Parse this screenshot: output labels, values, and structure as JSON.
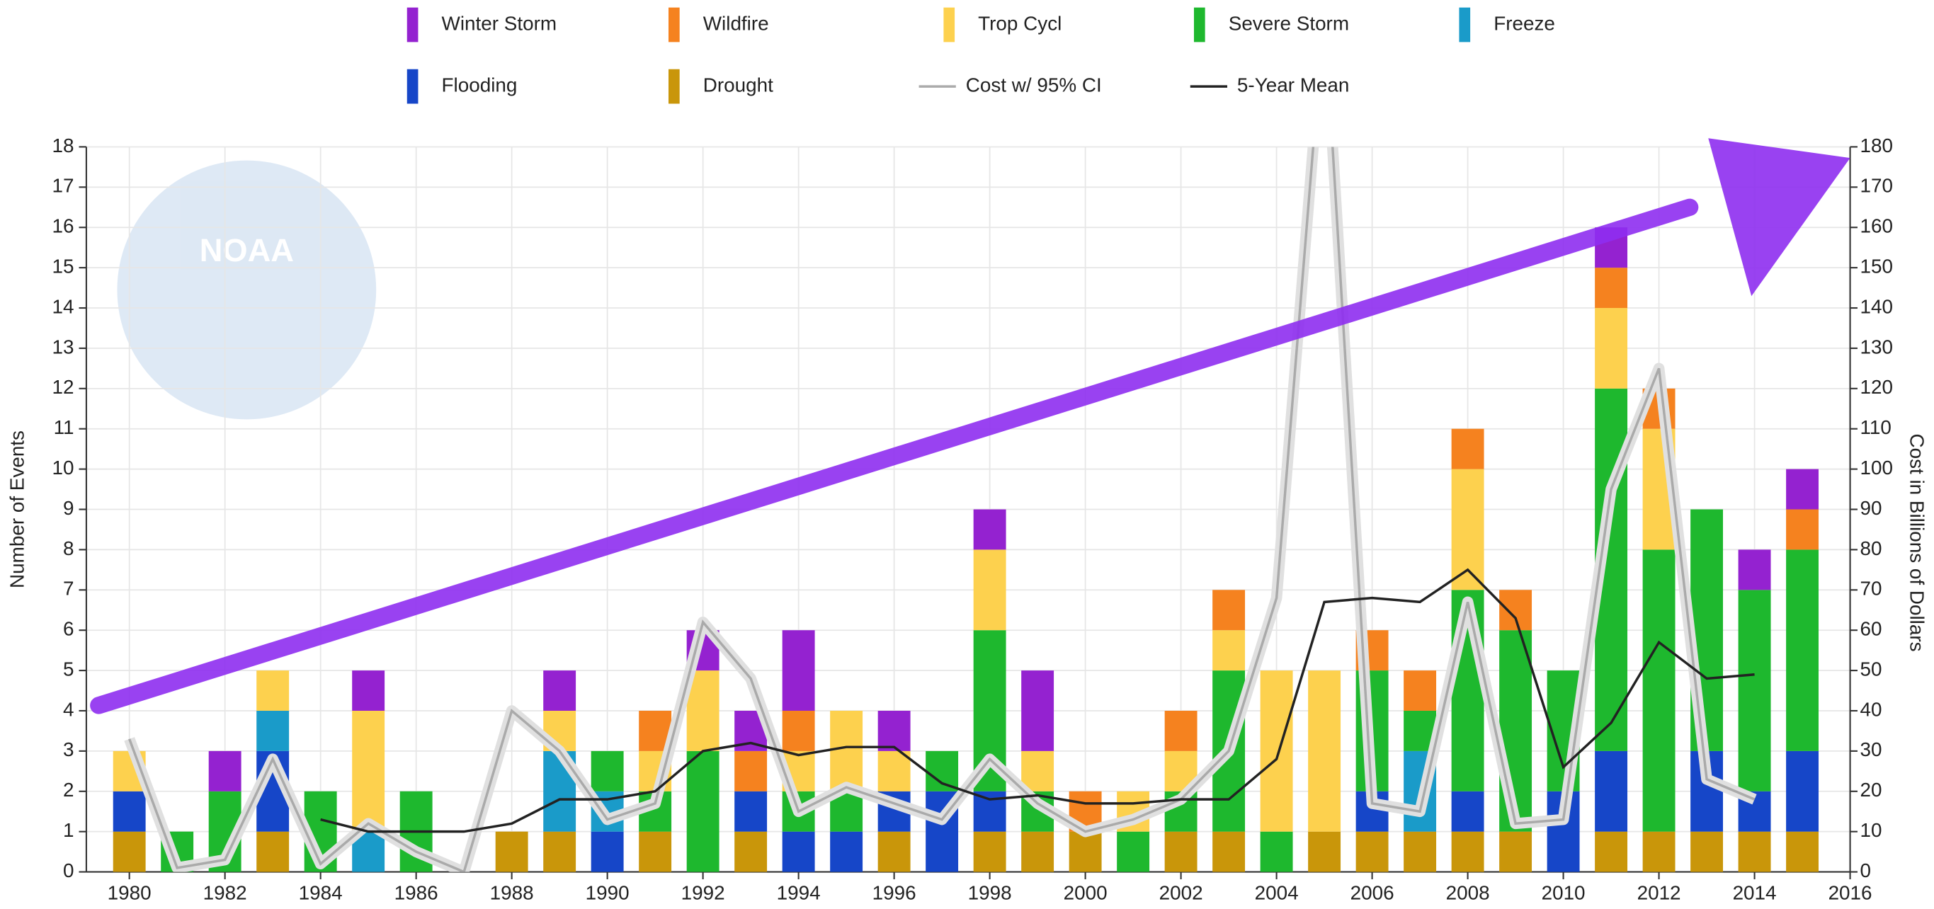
{
  "chart_data": {
    "type": "bar",
    "stacked": true,
    "watermark": "NOAA",
    "x": [
      1980,
      1981,
      1982,
      1983,
      1984,
      1985,
      1986,
      1987,
      1988,
      1989,
      1990,
      1991,
      1992,
      1993,
      1994,
      1995,
      1996,
      1997,
      1998,
      1999,
      2000,
      2001,
      2002,
      2003,
      2004,
      2005,
      2006,
      2007,
      2008,
      2009,
      2010,
      2011,
      2012,
      2013,
      2014,
      2015
    ],
    "xlim": [
      1979.1,
      2016
    ],
    "xticks": [
      1980,
      1982,
      1984,
      1986,
      1988,
      1990,
      1992,
      1994,
      1996,
      1998,
      2000,
      2002,
      2004,
      2006,
      2008,
      2010,
      2012,
      2014,
      2016
    ],
    "ylabel": "Number of Events",
    "ylim": [
      0,
      18
    ],
    "yticks": [
      0,
      1,
      2,
      3,
      4,
      5,
      6,
      7,
      8,
      9,
      10,
      11,
      12,
      13,
      14,
      15,
      16,
      17,
      18
    ],
    "y2label": "Cost in Billions of Dollars",
    "y2lim": [
      0,
      180
    ],
    "y2ticks": [
      0,
      10,
      20,
      30,
      40,
      50,
      60,
      70,
      80,
      90,
      100,
      110,
      120,
      130,
      140,
      150,
      160,
      170,
      180
    ],
    "grid": true,
    "series": [
      {
        "name": "Winter Storm",
        "color": "#9422d0",
        "values": [
          0,
          0,
          1,
          0,
          0,
          1,
          0,
          0,
          0,
          1,
          0,
          0,
          1,
          1,
          2,
          0,
          1,
          0,
          1,
          2,
          0,
          0,
          0,
          0,
          0,
          0,
          0,
          0,
          0,
          0,
          0,
          1,
          0,
          0,
          1,
          1
        ]
      },
      {
        "name": "Wildfire",
        "color": "#f5821f",
        "values": [
          0,
          0,
          0,
          0,
          0,
          0,
          0,
          0,
          0,
          0,
          0,
          1,
          0,
          1,
          1,
          0,
          0,
          0,
          0,
          0,
          1,
          0,
          1,
          1,
          0,
          0,
          1,
          1,
          1,
          1,
          0,
          1,
          1,
          0,
          0,
          1
        ]
      },
      {
        "name": "Trop Cycl",
        "color": "#fdd14e",
        "values": [
          1,
          0,
          0,
          1,
          0,
          3,
          0,
          0,
          0,
          1,
          0,
          1,
          2,
          0,
          1,
          2,
          1,
          0,
          2,
          1,
          0,
          1,
          1,
          1,
          4,
          4,
          0,
          0,
          3,
          0,
          0,
          2,
          3,
          0,
          0,
          0
        ]
      },
      {
        "name": "Severe Storm",
        "color": "#1eb82e",
        "values": [
          0,
          1,
          2,
          0,
          2,
          0,
          2,
          0,
          0,
          0,
          1,
          1,
          3,
          0,
          1,
          1,
          0,
          1,
          4,
          1,
          0,
          1,
          1,
          4,
          1,
          0,
          3,
          1,
          5,
          5,
          3,
          9,
          7,
          6,
          5,
          5
        ]
      },
      {
        "name": "Freeze",
        "color": "#1a9bc9",
        "values": [
          0,
          0,
          0,
          1,
          0,
          1,
          0,
          0,
          0,
          2,
          1,
          0,
          0,
          0,
          0,
          0,
          0,
          0,
          0,
          0,
          0,
          0,
          0,
          0,
          0,
          0,
          0,
          2,
          0,
          0,
          0,
          0,
          0,
          0,
          0,
          0
        ]
      },
      {
        "name": "Flooding",
        "color": "#1646c8",
        "values": [
          1,
          0,
          0,
          2,
          0,
          0,
          0,
          0,
          0,
          0,
          1,
          0,
          0,
          1,
          1,
          1,
          1,
          2,
          1,
          0,
          0,
          0,
          0,
          0,
          0,
          0,
          1,
          0,
          1,
          0,
          2,
          2,
          0,
          2,
          1,
          2
        ]
      },
      {
        "name": "Drought",
        "color": "#c9960a",
        "values": [
          1,
          0,
          0,
          1,
          0,
          0,
          0,
          0,
          1,
          1,
          0,
          1,
          0,
          1,
          0,
          0,
          1,
          0,
          1,
          1,
          1,
          0,
          1,
          1,
          0,
          1,
          1,
          1,
          1,
          1,
          0,
          1,
          1,
          1,
          1,
          1
        ]
      },
      {
        "name": "Cost w/ 95% CI",
        "type": "line",
        "axis": "y2",
        "color": "#aaaaaa",
        "values": [
          33,
          1,
          3,
          28,
          2,
          12,
          5,
          0,
          40,
          30,
          13,
          17,
          62,
          48,
          15,
          21,
          17,
          13,
          28,
          17,
          10,
          13,
          18,
          30,
          68,
          214,
          17,
          15,
          67,
          12,
          13,
          95,
          125,
          23,
          18,
          null
        ]
      },
      {
        "name": "5-Year Mean",
        "type": "line",
        "axis": "y2",
        "color": "#222222",
        "values": [
          null,
          null,
          null,
          null,
          13,
          10,
          10,
          10,
          12,
          18,
          18,
          20,
          30,
          32,
          29,
          31,
          31,
          22,
          18,
          19,
          17,
          17,
          18,
          18,
          28,
          67,
          68,
          67,
          75,
          63,
          26,
          37,
          57,
          48,
          49,
          null
        ]
      }
    ]
  }
}
